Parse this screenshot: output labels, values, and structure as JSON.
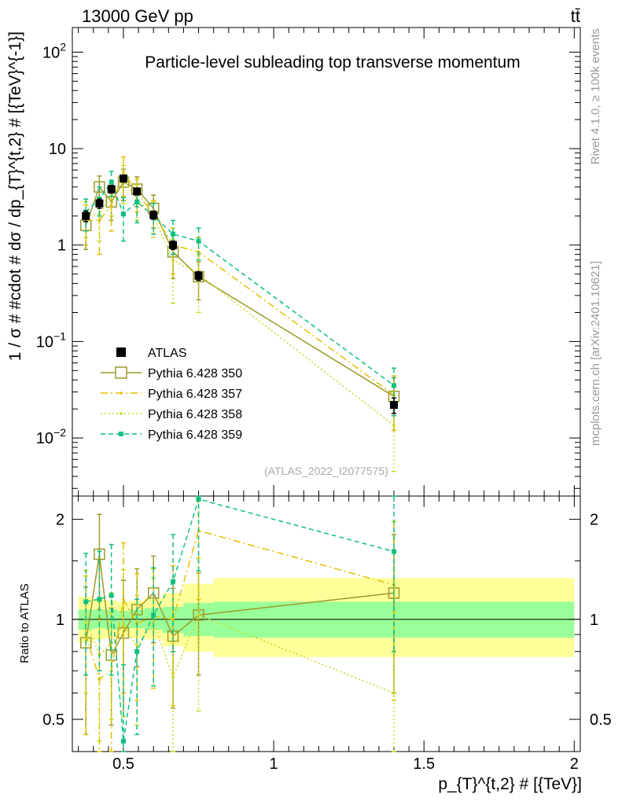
{
  "header": {
    "left": "13000 GeV pp",
    "right": "tt̄"
  },
  "side_labels": {
    "rivet": "Rivet 4.1.0, ≥ 100k events",
    "mcplots": "mcplots.cern.ch [arXiv:2401.10621]"
  },
  "colors": {
    "atlas": "#000000",
    "p350": "#9a9a2a",
    "p357": "#e0c000",
    "p358": "#c8d820",
    "p359": "#10c080",
    "band_inner": "#99ff99",
    "band_outer": "#ffff99"
  },
  "chart_data": [
    {
      "type": "scatter",
      "title": "Particle-level subleading top transverse momentum",
      "analysis_tag": "(ATLAS_2022_I2077575)",
      "xlabel": "p_{T}^{t,2} # [{TeV}]",
      "ylabel": "1 / σ # #cdot # dσ / dp_{T}^{t,2} # [{TeV}^{-1}]",
      "yscale": "log",
      "xlim": [
        0.33,
        2.02
      ],
      "ylim": [
        0.0025,
        180
      ],
      "y_ticks": [
        "10^-2",
        "10^-1",
        "1",
        "10",
        "10^2"
      ],
      "series": [
        {
          "name": "ATLAS",
          "style": "square",
          "color": "#000000",
          "x": [
            0.375,
            0.42,
            0.46,
            0.5,
            0.545,
            0.6,
            0.665,
            0.75,
            1.4
          ],
          "y": [
            2.0,
            2.7,
            3.8,
            4.9,
            3.6,
            2.05,
            1.0,
            0.48,
            0.022
          ],
          "yerr": [
            0.25,
            0.3,
            0.35,
            0.4,
            0.3,
            0.2,
            0.1,
            0.05,
            0.004
          ]
        },
        {
          "name": "Pythia 6.428 350",
          "style": "open-square-solid",
          "color": "#9a9a2a",
          "x": [
            0.375,
            0.42,
            0.46,
            0.5,
            0.545,
            0.6,
            0.665,
            0.75,
            1.4
          ],
          "y": [
            1.6,
            4.0,
            2.8,
            4.5,
            3.8,
            2.4,
            0.85,
            0.47,
            0.027
          ],
          "yerr": [
            0.7,
            1.2,
            1.0,
            1.6,
            1.3,
            0.9,
            0.4,
            0.2,
            0.015
          ]
        },
        {
          "name": "Pythia 6.428 357",
          "style": "dashdot",
          "color": "#e0c000",
          "x": [
            0.375,
            0.42,
            0.46,
            0.5,
            0.545,
            0.6,
            0.665,
            0.75,
            1.4
          ],
          "y": [
            1.8,
            1.8,
            2.6,
            5.7,
            3.5,
            2.1,
            1.0,
            0.85,
            0.028
          ],
          "yerr": [
            0.8,
            1.0,
            1.2,
            2.5,
            1.3,
            0.8,
            0.5,
            0.35,
            0.016
          ]
        },
        {
          "name": "Pythia 6.428 358",
          "style": "dotted",
          "color": "#c8d820",
          "x": [
            0.375,
            0.42,
            0.46,
            0.5,
            0.545,
            0.6,
            0.665,
            0.75,
            1.4
          ],
          "y": [
            2.0,
            2.1,
            3.2,
            4.7,
            3.0,
            2.0,
            0.7,
            0.5,
            0.0135
          ],
          "yerr": [
            0.8,
            1.0,
            1.2,
            2.0,
            1.2,
            0.8,
            0.45,
            0.3,
            0.009
          ]
        },
        {
          "name": "Pythia 6.428 359",
          "style": "dashed-filled-square",
          "color": "#10c080",
          "x": [
            0.375,
            0.42,
            0.46,
            0.5,
            0.545,
            0.6,
            0.665,
            0.75,
            1.4
          ],
          "y": [
            2.2,
            3.0,
            4.5,
            2.1,
            2.8,
            2.0,
            1.3,
            1.1,
            0.035
          ],
          "yerr": [
            0.8,
            1.0,
            1.3,
            1.0,
            1.1,
            0.7,
            0.5,
            0.4,
            0.018
          ]
        }
      ]
    },
    {
      "type": "scatter",
      "title": "",
      "ylabel": "Ratio to ATLAS",
      "yscale": "log",
      "ylim": [
        0.4,
        2.35
      ],
      "y_ticks": [
        "0.5",
        "1",
        "2"
      ],
      "x_ticks": [
        "0.5",
        "1",
        "1.5",
        "2"
      ],
      "bands": {
        "x_edges": [
          0.35,
          0.4,
          0.44,
          0.48,
          0.52,
          0.57,
          0.63,
          0.7,
          0.8,
          2.0
        ],
        "inner": [
          [
            0.93,
            1.07
          ],
          [
            0.94,
            1.07
          ],
          [
            0.93,
            1.07
          ],
          [
            0.94,
            1.06
          ],
          [
            0.94,
            1.07
          ],
          [
            0.93,
            1.08
          ],
          [
            0.91,
            1.09
          ],
          [
            0.89,
            1.12
          ],
          [
            0.88,
            1.13
          ]
        ],
        "outer": [
          [
            0.85,
            1.17
          ],
          [
            0.87,
            1.15
          ],
          [
            0.88,
            1.14
          ],
          [
            0.89,
            1.13
          ],
          [
            0.88,
            1.14
          ],
          [
            0.87,
            1.16
          ],
          [
            0.83,
            1.2
          ],
          [
            0.8,
            1.28
          ],
          [
            0.77,
            1.33
          ]
        ]
      },
      "series": [
        {
          "name": "Pythia 6.428 350",
          "style": "open-square-solid",
          "color": "#9a9a2a",
          "x": [
            0.375,
            0.42,
            0.46,
            0.5,
            0.545,
            0.6,
            0.665,
            0.75,
            1.4
          ],
          "y": [
            0.85,
            1.57,
            0.78,
            0.91,
            1.07,
            1.2,
            0.89,
            1.03,
            1.2
          ],
          "yerr": [
            0.4,
            0.5,
            0.3,
            0.4,
            0.35,
            0.35,
            0.35,
            0.35,
            0.6
          ]
        },
        {
          "name": "Pythia 6.428 357",
          "style": "dashdot",
          "color": "#e0c000",
          "x": [
            0.375,
            0.42,
            0.46,
            0.5,
            0.545,
            0.6,
            0.665,
            0.75,
            1.4
          ],
          "y": [
            0.9,
            0.66,
            0.7,
            1.15,
            0.97,
            1.02,
            1.0,
            1.85,
            1.27
          ],
          "yerr": [
            0.45,
            0.35,
            0.35,
            0.55,
            0.4,
            0.4,
            0.45,
            0.7,
            0.7
          ]
        },
        {
          "name": "Pythia 6.428 358",
          "style": "dotted",
          "color": "#c8d820",
          "x": [
            0.375,
            0.42,
            0.46,
            0.5,
            0.545,
            0.6,
            0.665,
            0.75,
            1.4
          ],
          "y": [
            1.0,
            0.78,
            0.85,
            0.96,
            0.83,
            0.98,
            0.67,
            1.03,
            0.6
          ],
          "yerr": [
            0.4,
            0.35,
            0.35,
            0.45,
            0.35,
            0.35,
            0.35,
            0.5,
            0.45
          ]
        },
        {
          "name": "Pythia 6.428 359",
          "style": "dashed-filled-square",
          "color": "#10c080",
          "x": [
            0.375,
            0.42,
            0.46,
            0.5,
            0.545,
            0.6,
            0.665,
            0.75,
            1.4
          ],
          "y": [
            1.13,
            1.15,
            1.18,
            0.43,
            0.8,
            1.03,
            1.3,
            2.3,
            1.6
          ],
          "yerr": [
            0.45,
            0.45,
            0.5,
            0.3,
            0.35,
            0.4,
            0.5,
            0.9,
            0.8
          ]
        }
      ]
    }
  ]
}
